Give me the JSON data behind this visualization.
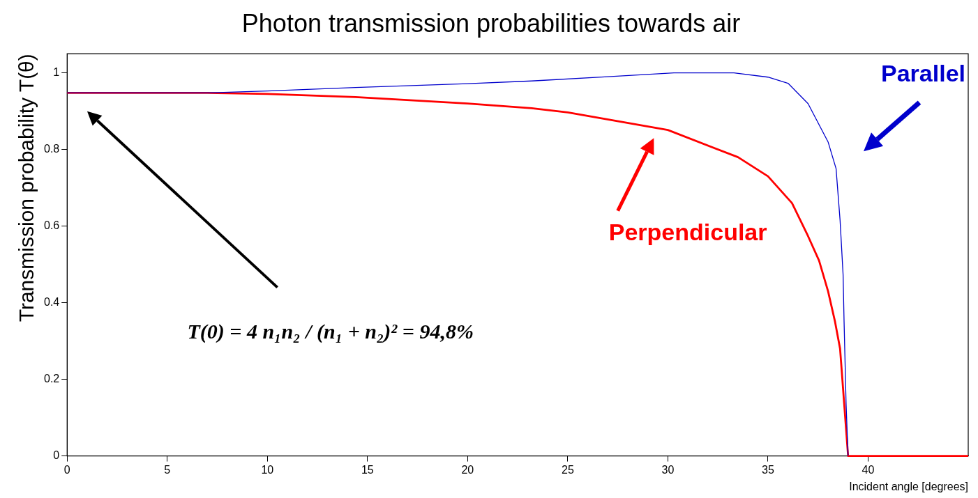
{
  "chart_data": {
    "type": "line",
    "title": "Photon transmission probabilities towards air",
    "xlabel": "Incident angle [degrees]",
    "ylabel": "Transmission probability T(θ)",
    "xlim": [
      0,
      45
    ],
    "xticks": [
      0,
      5,
      10,
      15,
      20,
      25,
      30,
      35,
      40
    ],
    "ylim": [
      0,
      1.05
    ],
    "yticks": [
      0,
      0.2,
      0.4,
      0.6,
      0.8,
      1
    ],
    "grid": false,
    "legend": false,
    "marker": "none",
    "line_style": "solid",
    "series": [
      {
        "name": "Parallel",
        "color": "#0000cc",
        "x": [
          0,
          7,
          10,
          14.4,
          20,
          23.2,
          27,
          30.3,
          33.3,
          35,
          36,
          37,
          38,
          38.4,
          38.6,
          38.75,
          38.8,
          38.9,
          39
        ],
        "values": [
          0.948,
          0.948,
          0.953,
          0.962,
          0.972,
          0.979,
          0.99,
          1.0,
          1.0,
          0.989,
          0.973,
          0.92,
          0.82,
          0.75,
          0.615,
          0.474,
          0.35,
          0.136,
          0
        ]
      },
      {
        "name": "Perpendicular",
        "color": "#ff0000",
        "x": [
          0,
          7,
          10,
          14.4,
          20,
          23.2,
          25,
          30,
          33.5,
          35,
          36.2,
          37,
          37.55,
          38,
          38.35,
          38.6,
          38.8,
          39,
          45
        ],
        "values": [
          0.948,
          0.948,
          0.945,
          0.937,
          0.92,
          0.908,
          0.897,
          0.851,
          0.78,
          0.73,
          0.66,
          0.574,
          0.51,
          0.43,
          0.35,
          0.28,
          0.14,
          0,
          0
        ]
      }
    ],
    "annotations": [
      "T(0) = 4 n₁n₂ / (n₁ + n₂)² = 94,8%"
    ]
  }
}
